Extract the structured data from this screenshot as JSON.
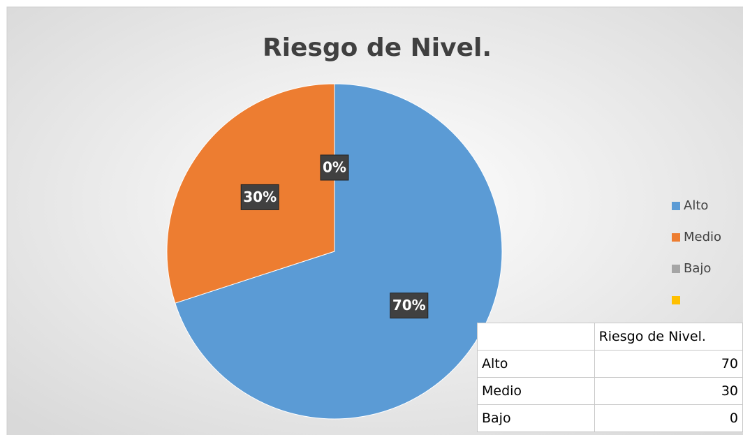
{
  "chart_data": {
    "type": "pie",
    "title": "Riesgo de Nivel.",
    "categories": [
      "Alto",
      "Medio",
      "Bajo",
      null
    ],
    "values": [
      70,
      30,
      0,
      null
    ],
    "value_labels": [
      "70%",
      "30%",
      "0%",
      null
    ],
    "colors": [
      "#5b9bd5",
      "#ed7d31",
      "#a5a5a5",
      "#ffc000"
    ],
    "legend": "right"
  },
  "table": {
    "column_header": "Riesgo de Nivel.",
    "rows": [
      [
        "Alto",
        70
      ],
      [
        "Medio",
        30
      ],
      [
        "Bajo",
        0
      ]
    ]
  }
}
